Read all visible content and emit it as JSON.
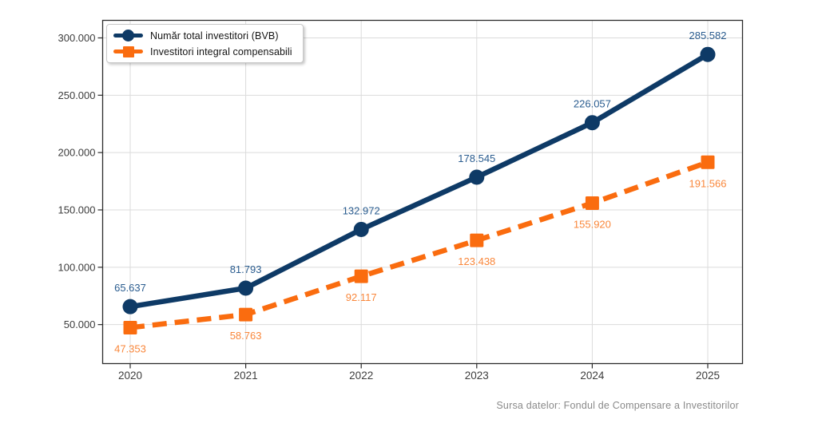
{
  "chart_data": {
    "type": "line",
    "categories": [
      "2020",
      "2021",
      "2022",
      "2023",
      "2024",
      "2025"
    ],
    "series": [
      {
        "name": "Număr total investitori (BVB)",
        "values": [
          65637,
          81793,
          132972,
          178545,
          226057,
          285582
        ],
        "point_labels": [
          "65.637",
          "81.793",
          "132.972",
          "178.545",
          "226.057",
          "285.582"
        ],
        "color": "#0E3A66",
        "label_color": "#2A5C8F",
        "marker": "circle",
        "line_style": "solid",
        "label_position": "above"
      },
      {
        "name": "Investitori integral compensabili",
        "values": [
          47353,
          58763,
          92117,
          123438,
          155920,
          191566
        ],
        "point_labels": [
          "47.353",
          "58.763",
          "92.117",
          "123.438",
          "155.920",
          "191.566"
        ],
        "color": "#FA6C0F",
        "label_color": "#F9873B",
        "marker": "square",
        "line_style": "dashed",
        "label_position": "below"
      }
    ],
    "y_axis": {
      "tick_values": [
        50000,
        100000,
        150000,
        200000,
        250000,
        300000
      ],
      "tick_labels": [
        "50.000",
        "100.000",
        "150.000",
        "200.000",
        "250.000",
        "300.000"
      ]
    },
    "ylim": [
      16000,
      315300
    ],
    "grid": true,
    "legend_position": "upper-left"
  },
  "source_note": "Sursa datelor: Fondul de Compensare a Investitorilor",
  "colors": {
    "grid": "#DBDBDB",
    "frame": "#2B2B2B",
    "tick_text": "#3D3D3D",
    "source_text": "#8A8A8A",
    "background": "#FFFFFF"
  }
}
